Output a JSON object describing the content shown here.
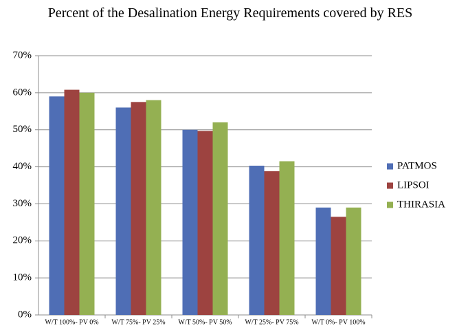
{
  "chart_data": {
    "type": "bar",
    "title": "Percent of the Desalination Energy Requirements covered by RES",
    "categories": [
      "W/T 100%- PV 0%",
      "W/T 75%- PV 25%",
      "W/T 50%- PV 50%",
      "W/T 25%- PV 75%",
      "W/T 0%- PV 100%"
    ],
    "series": [
      {
        "name": "PATMOS",
        "color": "#4f6eb5",
        "values": [
          59,
          56,
          50,
          40.3,
          29
        ]
      },
      {
        "name": "LIPSOI",
        "color": "#9d4340",
        "values": [
          60.8,
          57.5,
          49.7,
          38.8,
          26.5
        ]
      },
      {
        "name": "THIRASIA",
        "color": "#94b052",
        "values": [
          60,
          58,
          52,
          41.5,
          29
        ]
      }
    ],
    "ylim": [
      0,
      70
    ],
    "yticks": [
      {
        "value": 0,
        "label": "0%"
      },
      {
        "value": 10,
        "label": "10%"
      },
      {
        "value": 20,
        "label": "20%"
      },
      {
        "value": 30,
        "label": "30%"
      },
      {
        "value": 40,
        "label": "40%"
      },
      {
        "value": 50,
        "label": "50%"
      },
      {
        "value": 60,
        "label": "60%"
      },
      {
        "value": 70,
        "label": "70%"
      }
    ],
    "grid": true,
    "legend": "right"
  }
}
